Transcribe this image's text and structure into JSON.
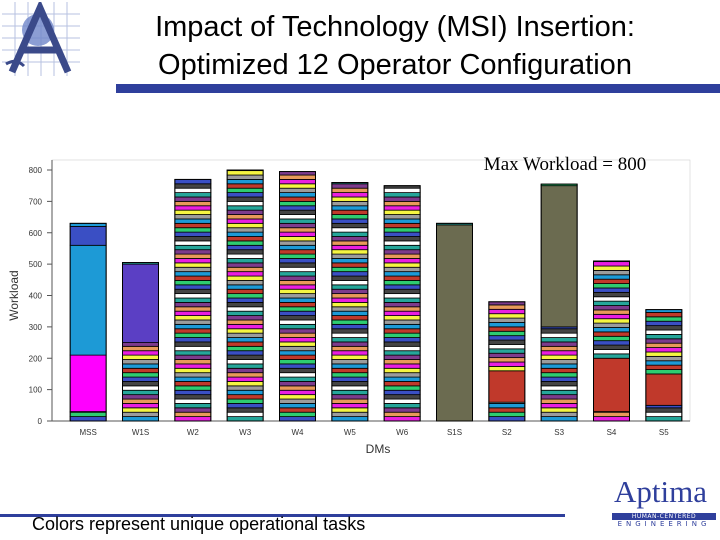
{
  "header": {
    "title_line1": "Impact of Technology (MSI) Insertion:",
    "title_line2": "Optimized 12 Operator Configuration"
  },
  "footer": {
    "caption": "Colors represent unique operational tasks",
    "company_name": "Aptima",
    "tagline_top": "HUMAN-CENTERED",
    "tagline_bottom": "ENGINEERING"
  },
  "colors": {
    "brand_blue": "#2f3f9c",
    "swatch_cycle": [
      "#3a4fc4",
      "#2ecc71",
      "#c0392b",
      "#1d9ad6",
      "#9c9c9c",
      "#f5f542",
      "#e91ee0",
      "#e89a5a",
      "#7d3b8c",
      "#26a69a",
      "#ffffff",
      "#444444"
    ]
  },
  "chart_data": {
    "type": "bar",
    "stacked": true,
    "title": "",
    "annotation": "Max Workload = 800",
    "xlabel": "DMs",
    "ylabel": "Workload",
    "ylim": [
      0,
      800
    ],
    "yticks": [
      0,
      100,
      200,
      300,
      400,
      500,
      600,
      700,
      800
    ],
    "categories": [
      "MSS",
      "W1S",
      "W2",
      "W3",
      "W4",
      "W5",
      "W6",
      "S1S",
      "S2",
      "S3",
      "S4",
      "S5"
    ],
    "totals": [
      630,
      505,
      770,
      800,
      795,
      760,
      750,
      630,
      380,
      755,
      510,
      355
    ],
    "notable_segments": [
      {
        "category": "MSS",
        "from": 210,
        "to": 560,
        "color": "#1d9ad6"
      },
      {
        "category": "MSS",
        "from": 30,
        "to": 210,
        "color": "#ff00ff"
      },
      {
        "category": "MSS",
        "from": 560,
        "to": 620,
        "color": "#3a4fc4"
      },
      {
        "category": "W1S",
        "from": 250,
        "to": 500,
        "color": "#5b3fc4"
      },
      {
        "category": "S1S",
        "from": 0,
        "to": 625,
        "color": "#6b6b50"
      },
      {
        "category": "S3",
        "from": 300,
        "to": 750,
        "color": "#6b6b50"
      },
      {
        "category": "S2",
        "from": 60,
        "to": 160,
        "color": "#c0392b"
      },
      {
        "category": "S4",
        "from": 30,
        "to": 200,
        "color": "#c0392b"
      },
      {
        "category": "S5",
        "from": 50,
        "to": 150,
        "color": "#c0392b"
      }
    ]
  }
}
